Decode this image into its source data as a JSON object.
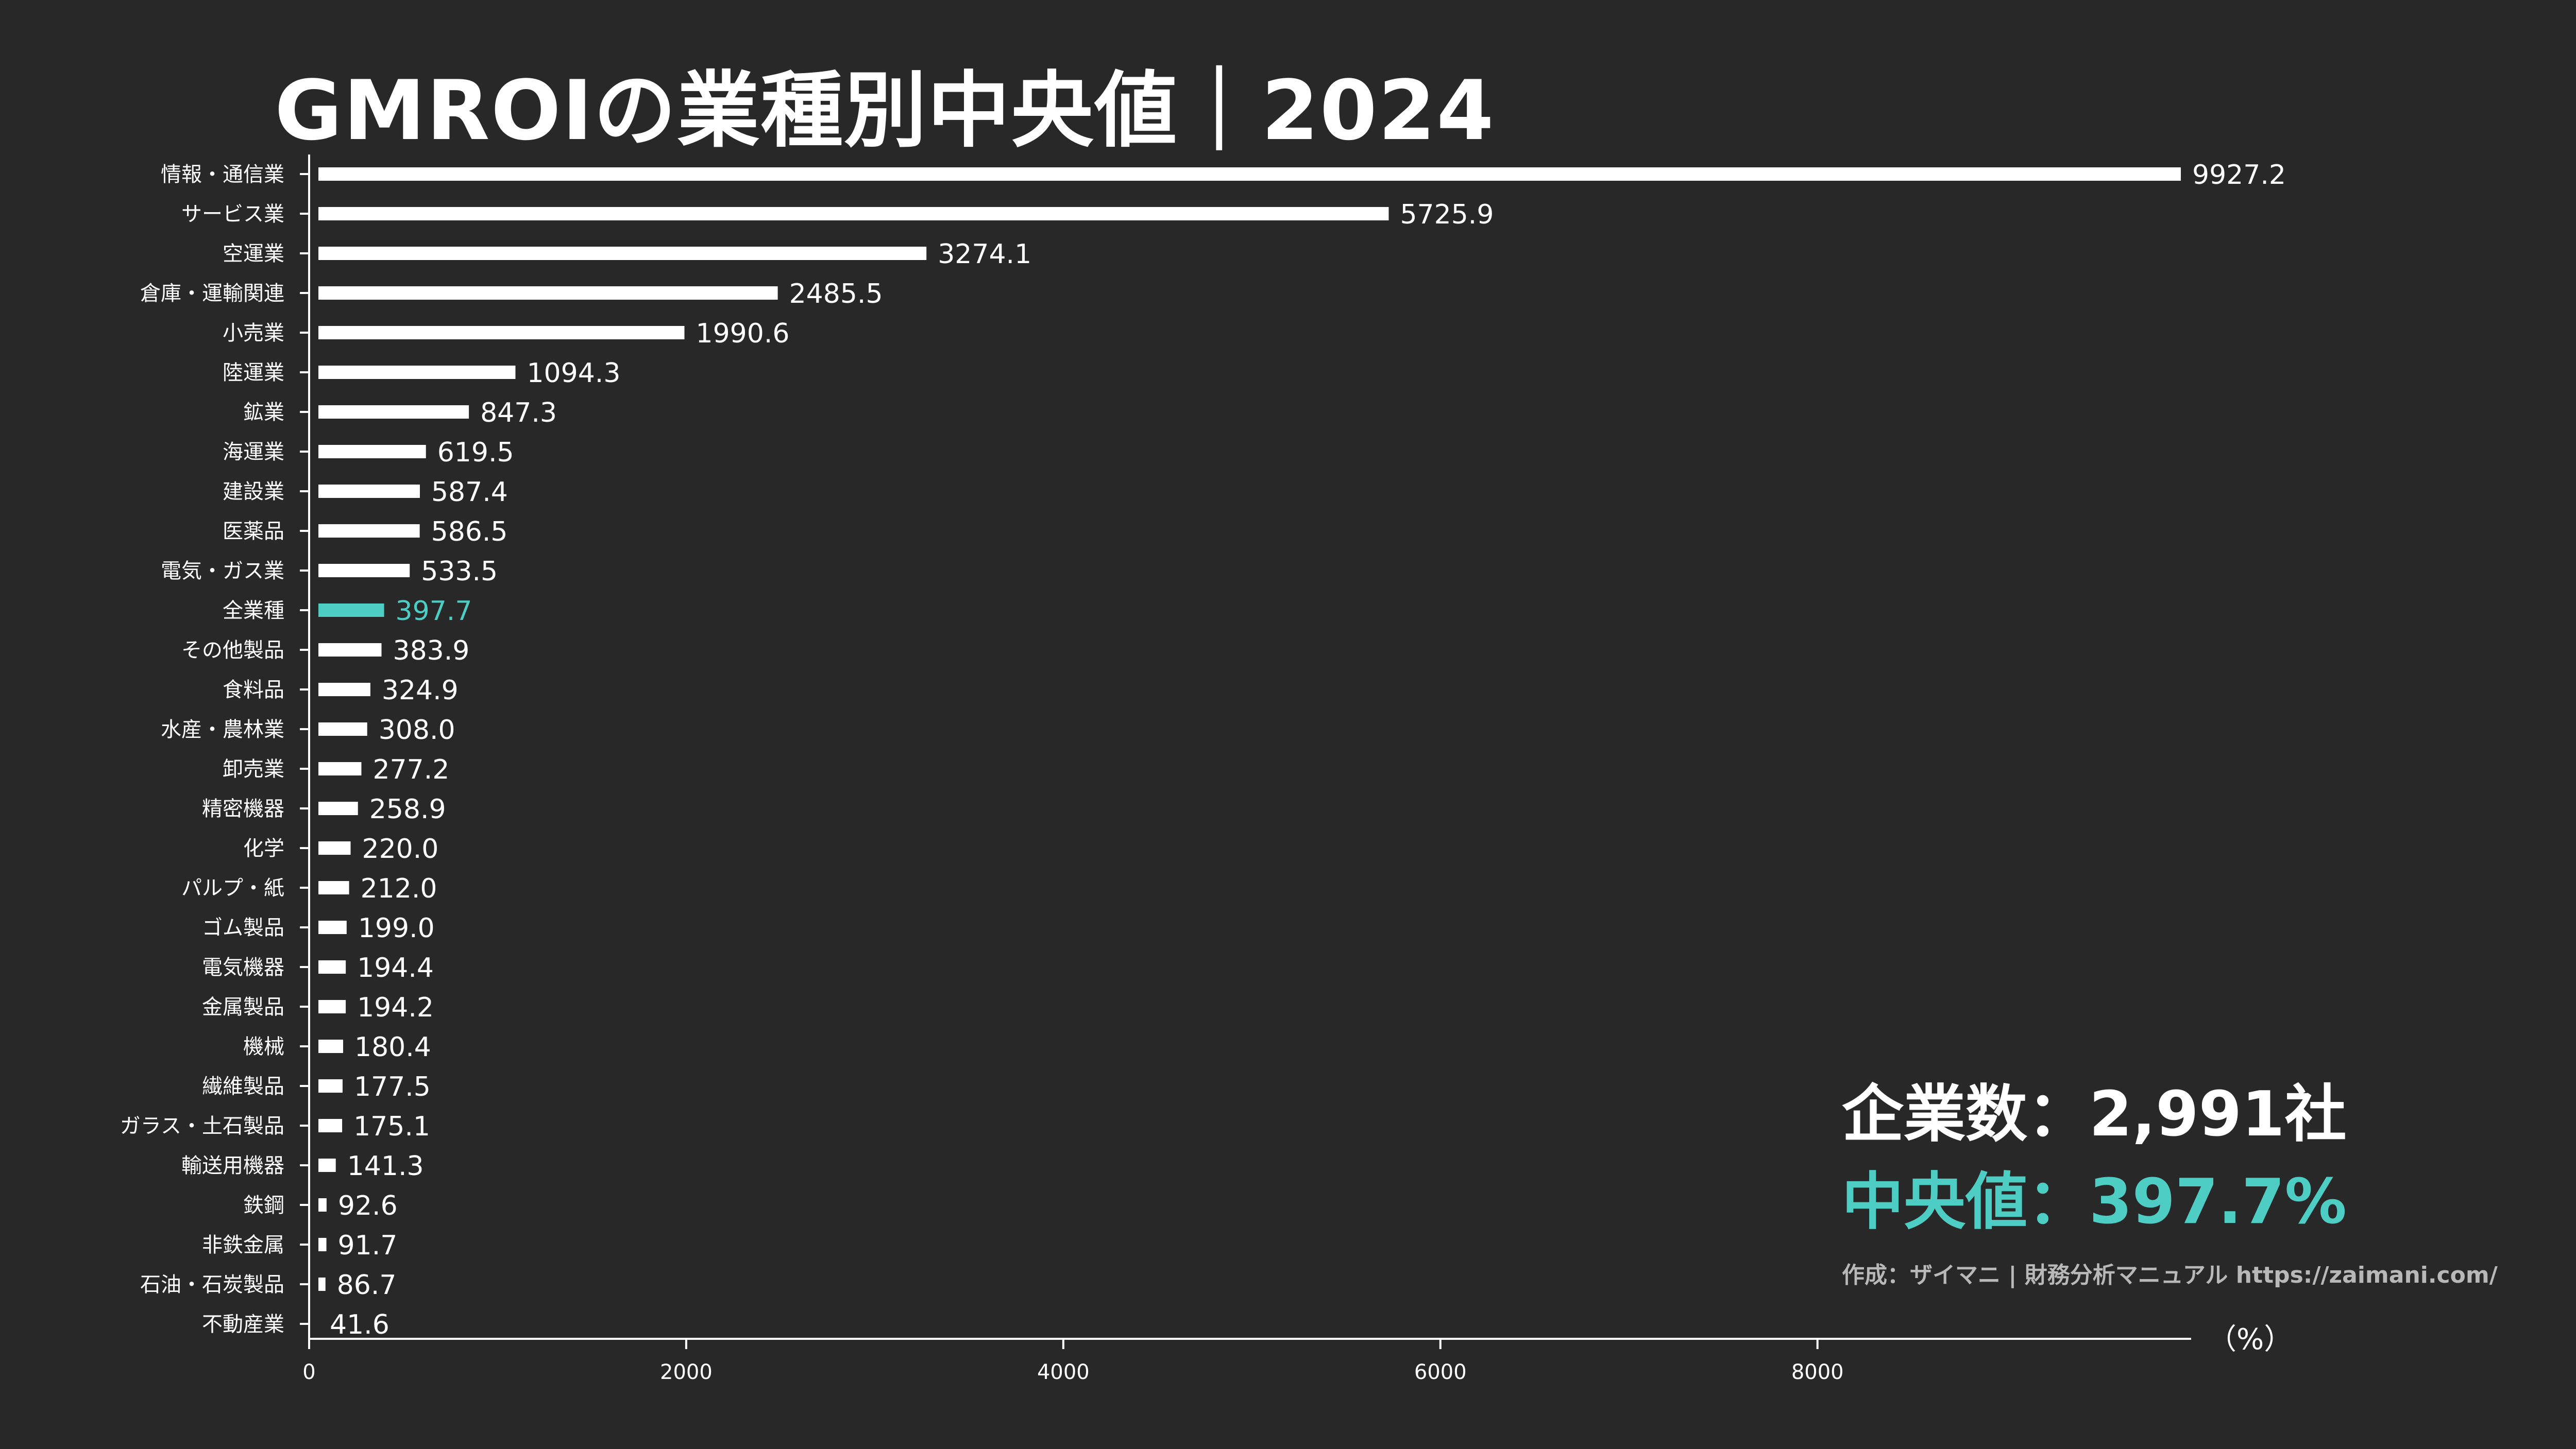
{
  "title": "GMROIの業種別中央値｜2024",
  "stats": {
    "company_count": "企業数：2,991社",
    "median": "中央値：397.7%",
    "credit": "作成：ザイマニ | 財務分析マニュアル https://zaimani.com/"
  },
  "colors": {
    "background": "#282828",
    "bar": "#ffffff",
    "highlight": "#4ecdc4",
    "credit": "#b8b8b8"
  },
  "chart_data": {
    "type": "bar",
    "orientation": "horizontal",
    "unit_label": "（%）",
    "xlim": [
      0,
      9927.2
    ],
    "xticks": [
      0,
      2000,
      4000,
      6000,
      8000
    ],
    "highlight_category": "全業種",
    "categories": [
      "情報・通信業",
      "サービス業",
      "空運業",
      "倉庫・運輸関連",
      "小売業",
      "陸運業",
      "鉱業",
      "海運業",
      "建設業",
      "医薬品",
      "電気・ガス業",
      "全業種",
      "その他製品",
      "食料品",
      "水産・農林業",
      "卸売業",
      "精密機器",
      "化学",
      "パルプ・紙",
      "ゴム製品",
      "電気機器",
      "金属製品",
      "機械",
      "繊維製品",
      "ガラス・土石製品",
      "輸送用機器",
      "鉄鋼",
      "非鉄金属",
      "石油・石炭製品",
      "不動産業"
    ],
    "values": [
      9927.2,
      5725.9,
      3274.1,
      2485.5,
      1990.6,
      1094.3,
      847.3,
      619.5,
      587.4,
      586.5,
      533.5,
      397.7,
      383.9,
      324.9,
      308.0,
      277.2,
      258.9,
      220.0,
      212.0,
      199.0,
      194.4,
      194.2,
      180.4,
      177.5,
      175.1,
      141.3,
      92.6,
      91.7,
      86.7,
      41.6
    ],
    "value_labels": [
      "9927.2",
      "5725.9",
      "3274.1",
      "2485.5",
      "1990.6",
      "1094.3",
      "847.3",
      "619.5",
      "587.4",
      "586.5",
      "533.5",
      "397.7",
      "383.9",
      "324.9",
      "308.0",
      "277.2",
      "258.9",
      "220.0",
      "212.0",
      "199.0",
      "194.4",
      "194.2",
      "180.4",
      "177.5",
      "175.1",
      "141.3",
      "92.6",
      "91.7",
      "86.7",
      "41.6"
    ]
  }
}
